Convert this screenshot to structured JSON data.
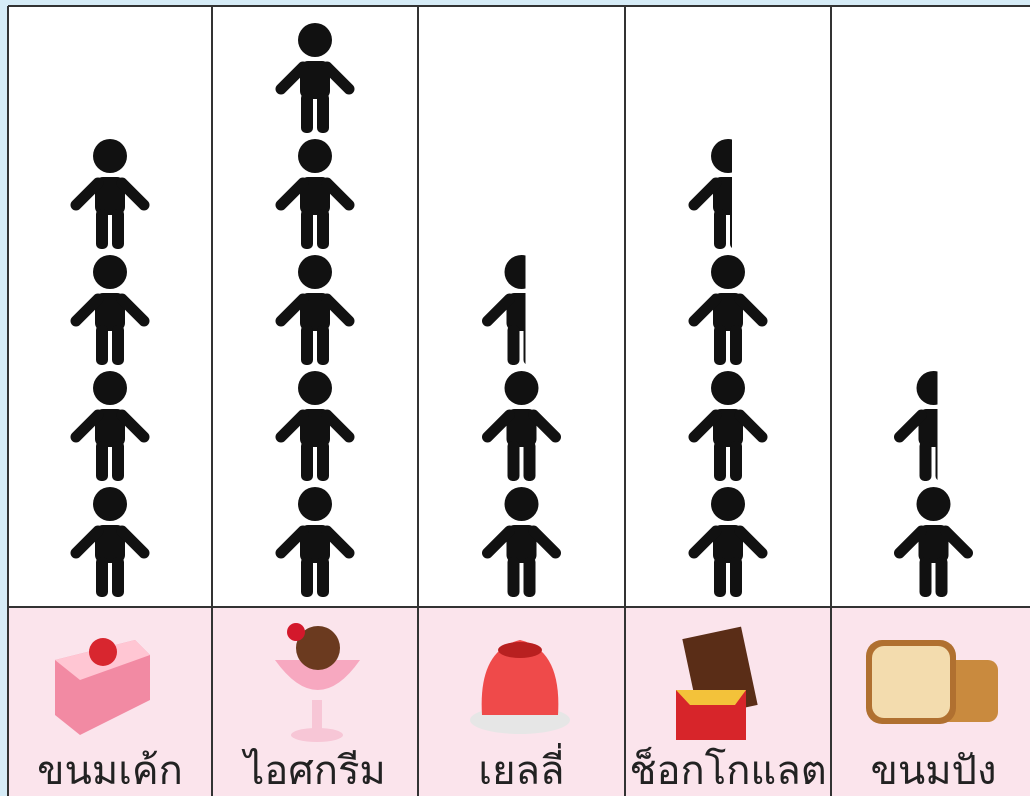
{
  "chart_data": {
    "type": "pictograph",
    "categories": [
      "ขนมเค้ก",
      "ไอศกรีม",
      "เยลลี่",
      "ช็อกโกแลต",
      "ขนมปัง"
    ],
    "values": [
      4,
      5,
      2.5,
      3.5,
      1.5
    ],
    "color": "#111111"
  }
}
